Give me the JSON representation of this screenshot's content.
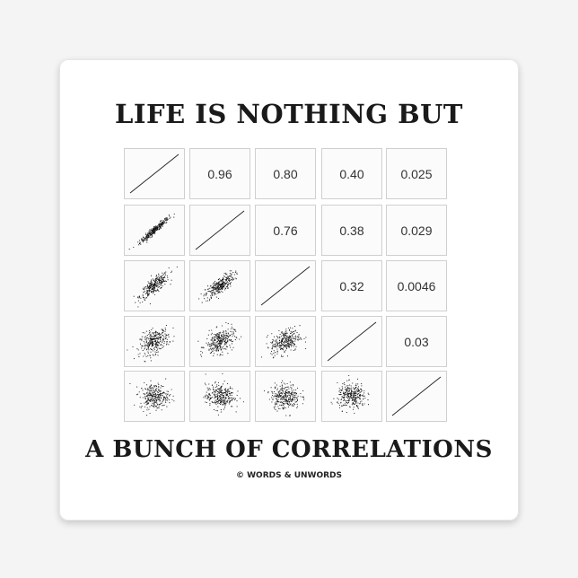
{
  "title_top": "LIFE IS NOTHING BUT",
  "title_bottom": "A BUNCH OF CORRELATIONS",
  "copyright": "© WORDS & UNWORDS",
  "chart_data": {
    "type": "scatter-matrix",
    "variables": 5,
    "upper_labels": [
      [
        "",
        "0.96",
        "0.80",
        "0.40",
        "0.025"
      ],
      [
        "",
        "",
        "0.76",
        "0.38",
        "0.029"
      ],
      [
        "",
        "",
        "",
        "0.32",
        "0.0046"
      ],
      [
        "",
        "",
        "",
        "",
        "0.03"
      ],
      [
        "",
        "",
        "",
        "",
        ""
      ]
    ],
    "correlations": [
      [
        1,
        0.96,
        0.8,
        0.4,
        0.025
      ],
      [
        0.96,
        1,
        0.76,
        0.38,
        0.029
      ],
      [
        0.8,
        0.76,
        1,
        0.32,
        0.0046
      ],
      [
        0.4,
        0.38,
        0.32,
        1,
        0.03
      ],
      [
        0.025,
        0.029,
        0.0046,
        0.03,
        1
      ]
    ],
    "point_color": "#111111"
  }
}
